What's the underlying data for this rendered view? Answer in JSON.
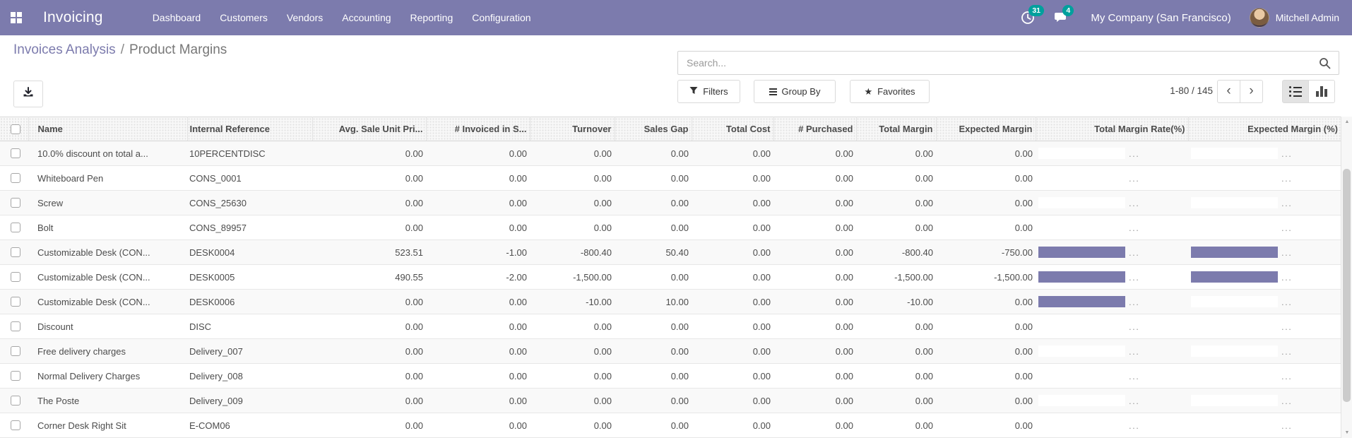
{
  "navbar": {
    "app_name": "Invoicing",
    "menu": [
      "Dashboard",
      "Customers",
      "Vendors",
      "Accounting",
      "Reporting",
      "Configuration"
    ],
    "activity_count": "31",
    "message_count": "4",
    "company": "My Company (San Francisco)",
    "user": "Mitchell Admin",
    "colors": {
      "background": "#7C7BAD",
      "badge": "#00A09D"
    }
  },
  "breadcrumb": {
    "parent": "Invoices Analysis",
    "separator": "/",
    "current": "Product Margins"
  },
  "search": {
    "placeholder": "Search..."
  },
  "controls": {
    "filters_label": "Filters",
    "group_by_label": "Group By",
    "favorites_label": "Favorites",
    "pager": "1-80 / 145"
  },
  "icons": {
    "prev": "‹",
    "next": "›",
    "favorites_star": "★",
    "scroll_up": "▲",
    "scroll_down": "▼"
  },
  "table": {
    "ellipsis": "...",
    "bar_color": "#7C7BAD",
    "columns": [
      {
        "label": "Name",
        "align": "left"
      },
      {
        "label": "Internal Reference",
        "align": "left"
      },
      {
        "label": "Avg. Sale Unit Pri...",
        "align": "right"
      },
      {
        "label": "# Invoiced in S...",
        "align": "right"
      },
      {
        "label": "Turnover",
        "align": "right"
      },
      {
        "label": "Sales Gap",
        "align": "right"
      },
      {
        "label": "Total Cost",
        "align": "right"
      },
      {
        "label": "# Purchased",
        "align": "right"
      },
      {
        "label": "Total Margin",
        "align": "right"
      },
      {
        "label": "Expected Margin",
        "align": "right"
      },
      {
        "label": "Total Margin Rate(%)",
        "align": "right",
        "type": "bar"
      },
      {
        "label": "Expected Margin (%)",
        "align": "right",
        "type": "bar"
      }
    ],
    "rows": [
      {
        "name": "10.0% discount on total a...",
        "internal_reference": "10PERCENTDISC",
        "values": [
          "0.00",
          "0.00",
          "0.00",
          "0.00",
          "0.00",
          "0.00",
          "0.00",
          "0.00"
        ],
        "bars": {
          "total_margin_rate": null,
          "expected_margin": null
        }
      },
      {
        "name": "Whiteboard Pen",
        "internal_reference": "CONS_0001",
        "values": [
          "0.00",
          "0.00",
          "0.00",
          "0.00",
          "0.00",
          "0.00",
          "0.00",
          "0.00"
        ],
        "bars": {
          "total_margin_rate": null,
          "expected_margin": null
        }
      },
      {
        "name": "Screw",
        "internal_reference": "CONS_25630",
        "values": [
          "0.00",
          "0.00",
          "0.00",
          "0.00",
          "0.00",
          "0.00",
          "0.00",
          "0.00"
        ],
        "bars": {
          "total_margin_rate": null,
          "expected_margin": null
        }
      },
      {
        "name": "Bolt",
        "internal_reference": "CONS_89957",
        "values": [
          "0.00",
          "0.00",
          "0.00",
          "0.00",
          "0.00",
          "0.00",
          "0.00",
          "0.00"
        ],
        "bars": {
          "total_margin_rate": null,
          "expected_margin": null
        }
      },
      {
        "name": "Customizable Desk (CON...",
        "internal_reference": "DESK0004",
        "values": [
          "523.51",
          "-1.00",
          "-800.40",
          "50.40",
          "0.00",
          "0.00",
          "-800.40",
          "-750.00"
        ],
        "bars": {
          "total_margin_rate": 100,
          "expected_margin": 100
        }
      },
      {
        "name": "Customizable Desk (CON...",
        "internal_reference": "DESK0005",
        "values": [
          "490.55",
          "-2.00",
          "-1,500.00",
          "0.00",
          "0.00",
          "0.00",
          "-1,500.00",
          "-1,500.00"
        ],
        "bars": {
          "total_margin_rate": 100,
          "expected_margin": 100
        }
      },
      {
        "name": "Customizable Desk (CON...",
        "internal_reference": "DESK0006",
        "values": [
          "0.00",
          "0.00",
          "-10.00",
          "10.00",
          "0.00",
          "0.00",
          "-10.00",
          "0.00"
        ],
        "bars": {
          "total_margin_rate": 100,
          "expected_margin": null
        }
      },
      {
        "name": "Discount",
        "internal_reference": "DISC",
        "values": [
          "0.00",
          "0.00",
          "0.00",
          "0.00",
          "0.00",
          "0.00",
          "0.00",
          "0.00"
        ],
        "bars": {
          "total_margin_rate": null,
          "expected_margin": null
        }
      },
      {
        "name": "Free delivery charges",
        "internal_reference": "Delivery_007",
        "values": [
          "0.00",
          "0.00",
          "0.00",
          "0.00",
          "0.00",
          "0.00",
          "0.00",
          "0.00"
        ],
        "bars": {
          "total_margin_rate": null,
          "expected_margin": null
        }
      },
      {
        "name": "Normal Delivery Charges",
        "internal_reference": "Delivery_008",
        "values": [
          "0.00",
          "0.00",
          "0.00",
          "0.00",
          "0.00",
          "0.00",
          "0.00",
          "0.00"
        ],
        "bars": {
          "total_margin_rate": null,
          "expected_margin": null
        }
      },
      {
        "name": "The Poste",
        "internal_reference": "Delivery_009",
        "values": [
          "0.00",
          "0.00",
          "0.00",
          "0.00",
          "0.00",
          "0.00",
          "0.00",
          "0.00"
        ],
        "bars": {
          "total_margin_rate": null,
          "expected_margin": null
        }
      },
      {
        "name": "Corner Desk Right Sit",
        "internal_reference": "E-COM06",
        "values": [
          "0.00",
          "0.00",
          "0.00",
          "0.00",
          "0.00",
          "0.00",
          "0.00",
          "0.00"
        ],
        "bars": {
          "total_margin_rate": null,
          "expected_margin": null
        }
      }
    ]
  }
}
